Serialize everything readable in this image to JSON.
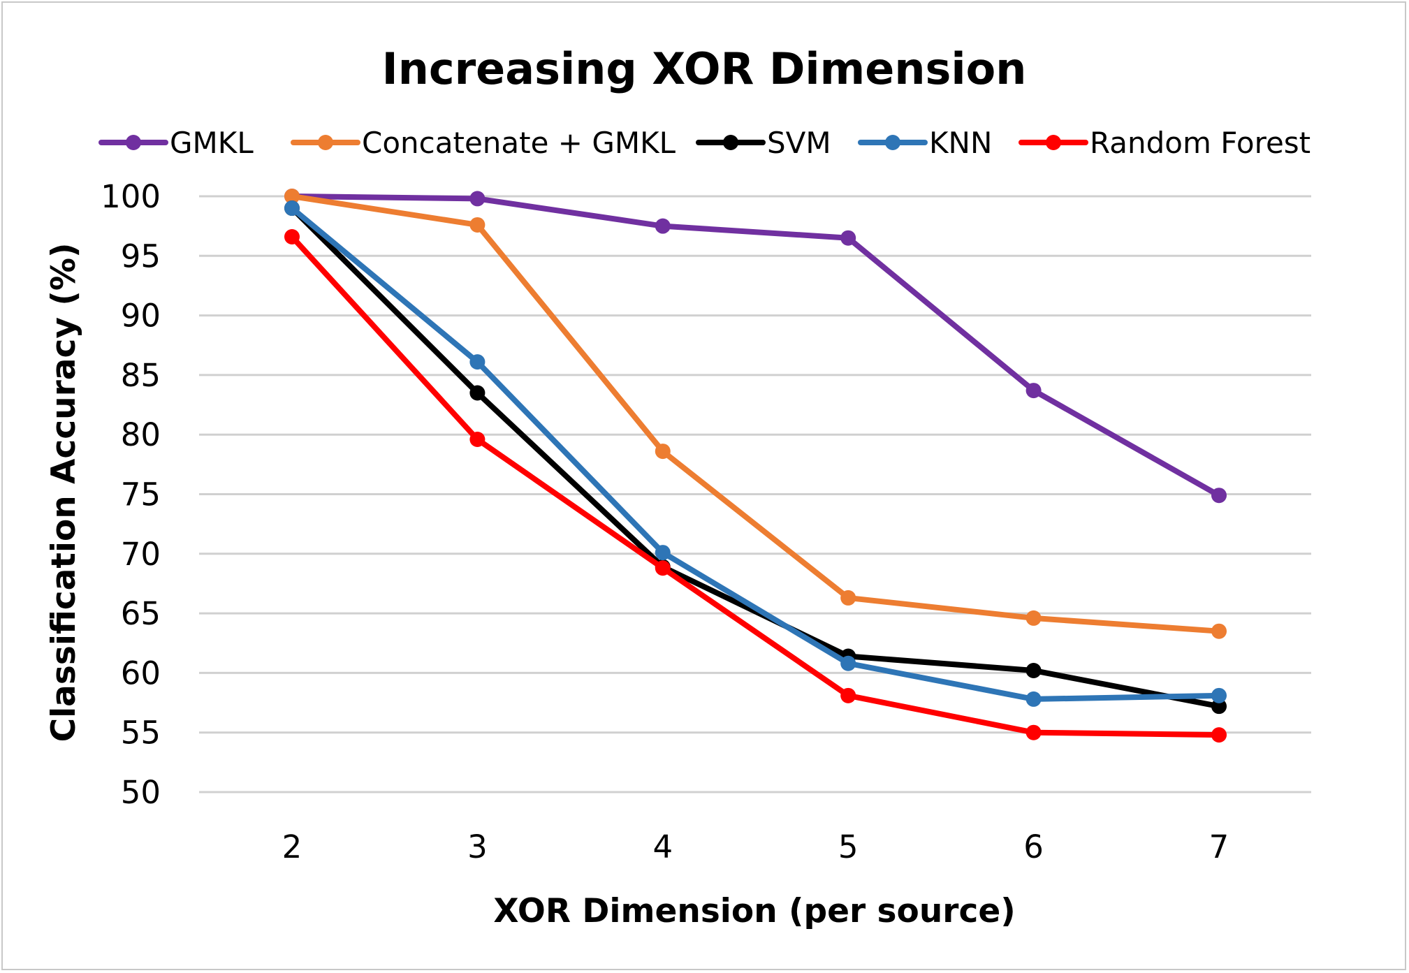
{
  "chart_data": {
    "type": "line",
    "title": "Increasing XOR Dimension",
    "xlabel": "XOR Dimension (per source)",
    "ylabel": "Classification Accuracy (%)",
    "x": [
      2,
      3,
      4,
      5,
      6,
      7
    ],
    "x_tick_labels": [
      "2",
      "3",
      "4",
      "5",
      "6",
      "7"
    ],
    "ylim": [
      50,
      100
    ],
    "y_ticks": [
      50,
      55,
      60,
      65,
      70,
      75,
      80,
      85,
      90,
      95,
      100
    ],
    "grid": true,
    "legend_position": "top",
    "series": [
      {
        "name": "GMKL",
        "color": "#7030a0",
        "values": [
          100,
          99.8,
          97.5,
          96.5,
          83.7,
          74.9
        ]
      },
      {
        "name": "Concatenate + GMKL",
        "color": "#ed7d31",
        "values": [
          100,
          97.6,
          78.6,
          66.3,
          64.6,
          63.5
        ]
      },
      {
        "name": "SVM",
        "color": "#000000",
        "values": [
          99,
          83.5,
          68.9,
          61.4,
          60.2,
          57.2
        ]
      },
      {
        "name": "KNN",
        "color": "#2e75b6",
        "values": [
          99,
          86.1,
          70.1,
          60.8,
          57.8,
          58.1
        ]
      },
      {
        "name": "Random Forest",
        "color": "#ff0000",
        "values": [
          96.6,
          79.6,
          68.8,
          58.1,
          55,
          54.8
        ]
      }
    ]
  }
}
